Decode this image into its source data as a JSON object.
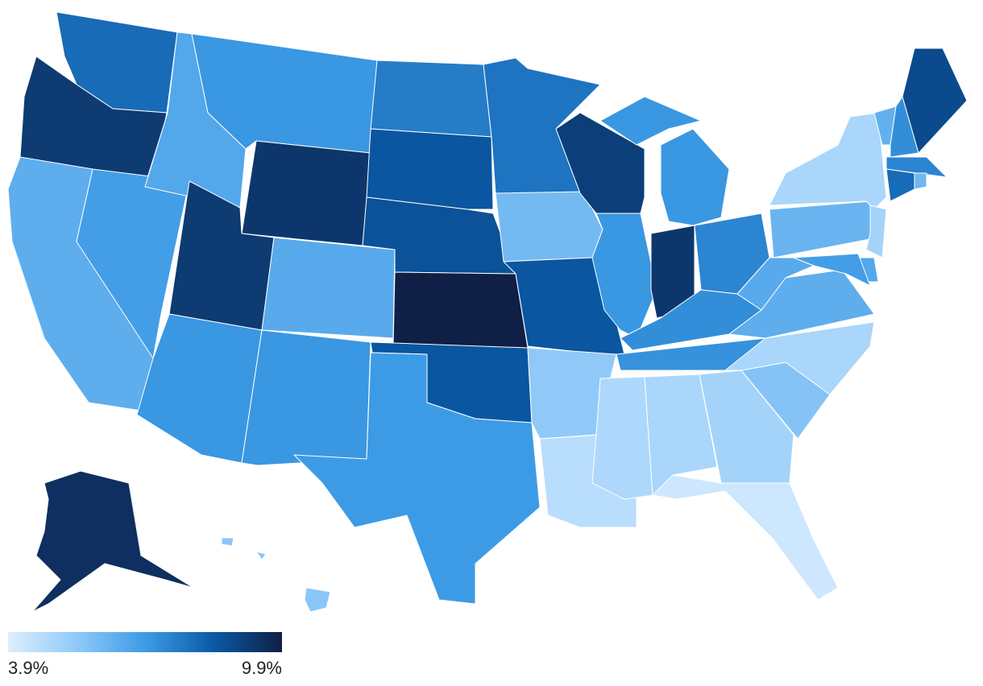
{
  "chart_data": {
    "type": "choropleth",
    "values": [
      8.0,
      9.2,
      6.3,
      6.8,
      6.5,
      7.0,
      9.3,
      9.2,
      7.0,
      6.4,
      7.0,
      7.6,
      8.5,
      8.6,
      9.9,
      8.5,
      6.9,
      7.8,
      5.9,
      8.5,
      5.4,
      4.6,
      9.1,
      7.0,
      7.0,
      9.3,
      7.4,
      7.2,
      7.1,
      4.8,
      4.9,
      5.0,
      4.2,
      5.6,
      4.9,
      6.3,
      6.4,
      6.1,
      4.9,
      6.2,
      7.2,
      8.8,
      7.4,
      8.0,
      6.0,
      5.0,
      6.5,
      6.8,
      9.5,
      5.5
    ],
    "colors": [
      "#dcefff",
      "#90c9f8",
      "#3d9be6",
      "#0a5aa6",
      "#0f1f45"
    ],
    "clim": [
      3.9,
      9.9
    ],
    "ticks": [
      {
        "value": 3.9,
        "label": "3.9%"
      },
      {
        "value": 9.9,
        "label": "9.9%"
      }
    ]
  }
}
